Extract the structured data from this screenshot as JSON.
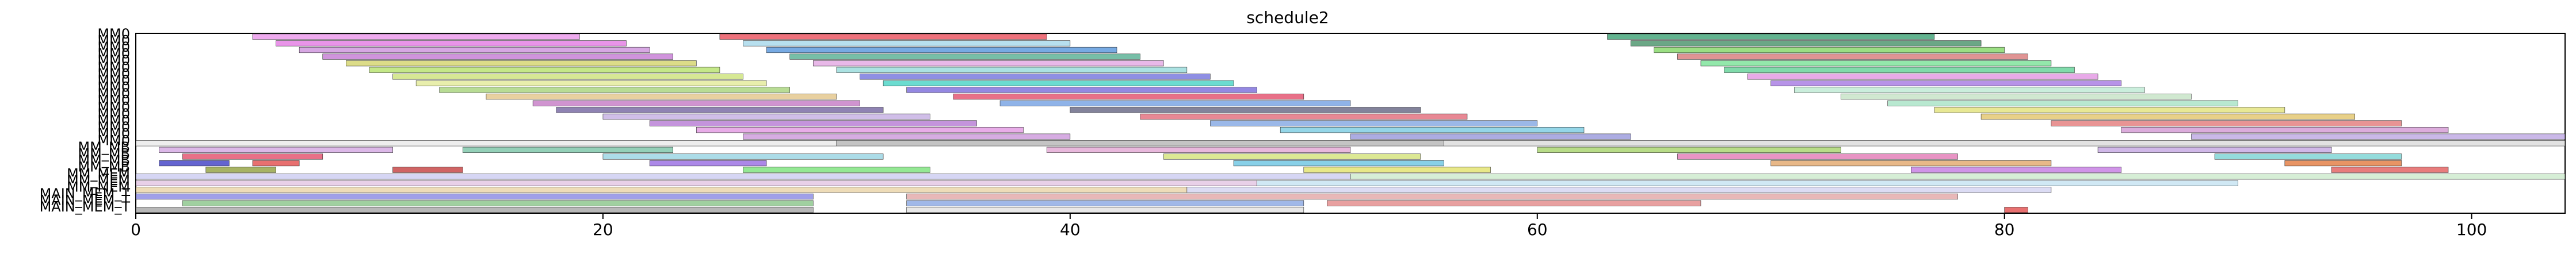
{
  "chart_data": {
    "type": "gantt",
    "title": "schedule2",
    "xlabel": "",
    "ylabel": "",
    "xlim": [
      0,
      104
    ],
    "x_ticks": [
      0,
      20,
      40,
      60,
      80,
      100
    ],
    "x_tick_labels": [
      "0",
      "20",
      "40",
      "60",
      "80",
      "100"
    ],
    "y_labels_visible": [
      "MM0",
      "MM0",
      "MM0",
      "MM0",
      "MM0",
      "MM0",
      "MM0",
      "MM0",
      "MM0",
      "MM0",
      "MM0",
      "MM0",
      "MM0",
      "MM0",
      "MM0",
      "MM0",
      "MM0",
      "MM_MB",
      "MM_MB",
      "MM_MB",
      "MM_MB",
      "MM_MEM",
      "MM_MEM",
      "MM_MEM",
      "MAIN_MEM_T",
      "MAIN_MEM_T",
      "MAIN_MEM_T"
    ],
    "rows": [
      {
        "label": "MM0",
        "bars": [
          [
            5,
            19,
            "#e88ee8"
          ],
          [
            25,
            39,
            "#e8424f"
          ],
          [
            63,
            77,
            "#2d9a6a"
          ]
        ]
      },
      {
        "label": "MM0",
        "bars": [
          [
            6,
            21,
            "#e070e0"
          ],
          [
            26,
            40,
            "#9fd4e8"
          ],
          [
            64,
            79,
            "#3a8a5e"
          ]
        ]
      },
      {
        "label": "MM0",
        "bars": [
          [
            7,
            22,
            "#c98ad9"
          ],
          [
            27,
            42,
            "#4a8ed9"
          ],
          [
            65,
            80,
            "#7ad45a"
          ]
        ]
      },
      {
        "label": "MM0",
        "bars": [
          [
            8,
            23,
            "#c070d0"
          ],
          [
            28,
            43,
            "#4aa88a"
          ],
          [
            66,
            81,
            "#d57070"
          ]
        ]
      },
      {
        "label": "MM0",
        "bars": [
          [
            9,
            24,
            "#d0d060"
          ],
          [
            29,
            44,
            "#e0a0e0"
          ],
          [
            67,
            82,
            "#6fe08f"
          ]
        ]
      },
      {
        "label": "MM0",
        "bars": [
          [
            10,
            25,
            "#b0e060"
          ],
          [
            30,
            45,
            "#8fd8d8"
          ],
          [
            68,
            83,
            "#56cf8f"
          ]
        ]
      },
      {
        "label": "MM0",
        "bars": [
          [
            11,
            26,
            "#c8e070"
          ],
          [
            31,
            46,
            "#6a6ad9"
          ],
          [
            69,
            84,
            "#e08ee0"
          ]
        ]
      },
      {
        "label": "MM0",
        "bars": [
          [
            12,
            27,
            "#e0e890"
          ],
          [
            32,
            47,
            "#3ad0c0"
          ],
          [
            70,
            85,
            "#9f6fe0"
          ]
        ]
      },
      {
        "label": "MM0",
        "bars": [
          [
            13,
            28,
            "#a0d070"
          ],
          [
            33,
            48,
            "#7060d8"
          ],
          [
            71,
            86,
            "#b8e8d0"
          ]
        ]
      },
      {
        "label": "MM0",
        "bars": [
          [
            15,
            30,
            "#e0c080"
          ],
          [
            35,
            50,
            "#e04060"
          ],
          [
            73,
            88,
            "#c0e0c0"
          ]
        ]
      },
      {
        "label": "MM0",
        "bars": [
          [
            17,
            31,
            "#c070c0"
          ],
          [
            37,
            52,
            "#6a9ae0"
          ],
          [
            75,
            90,
            "#a0e0c0"
          ]
        ]
      },
      {
        "label": "MM0",
        "bars": [
          [
            18,
            32,
            "#6a5a9a"
          ],
          [
            40,
            55,
            "#5a5a7a"
          ],
          [
            77,
            92,
            "#e0e070"
          ]
        ]
      },
      {
        "label": "MM0",
        "bars": [
          [
            20,
            34,
            "#c0a8e0"
          ],
          [
            43,
            57,
            "#e06070"
          ],
          [
            79,
            95,
            "#e0c060"
          ]
        ]
      },
      {
        "label": "MM0",
        "bars": [
          [
            22,
            36,
            "#b070d0"
          ],
          [
            46,
            60,
            "#7aa0e0"
          ],
          [
            82,
            97,
            "#e07070"
          ]
        ]
      },
      {
        "label": "MM0",
        "bars": [
          [
            24,
            38,
            "#e090e0"
          ],
          [
            49,
            62,
            "#70c8e0"
          ],
          [
            85,
            99,
            "#d090d0"
          ]
        ]
      },
      {
        "label": "MM0",
        "bars": [
          [
            26,
            40,
            "#c890d8"
          ],
          [
            52,
            64,
            "#9090d8"
          ],
          [
            88,
            104,
            "#b8a0e0"
          ]
        ]
      },
      {
        "label": "MM0",
        "bars": [
          [
            0,
            30,
            "#e8e8e8"
          ],
          [
            30,
            56,
            "#b0b0b0"
          ],
          [
            56,
            104,
            "#d8d8d8"
          ]
        ]
      },
      {
        "label": "MM_MB",
        "bars": [
          [
            1,
            11,
            "#d0a0e0"
          ],
          [
            14,
            23,
            "#70c0a0"
          ],
          [
            39,
            52,
            "#e0a0d0"
          ],
          [
            60,
            73,
            "#a0d060"
          ],
          [
            84,
            94,
            "#c0a0e0"
          ]
        ]
      },
      {
        "label": "MM_MB",
        "bars": [
          [
            2,
            8,
            "#e04060"
          ],
          [
            20,
            32,
            "#90d0e0"
          ],
          [
            44,
            55,
            "#d0e070"
          ],
          [
            66,
            78,
            "#e070b0"
          ],
          [
            89,
            97,
            "#70d0d0"
          ]
        ]
      },
      {
        "label": "MM_MB",
        "bars": [
          [
            1,
            4,
            "#3030c0"
          ],
          [
            5,
            7,
            "#e04040"
          ],
          [
            22,
            27,
            "#9060e0"
          ],
          [
            47,
            56,
            "#60c0e0"
          ],
          [
            70,
            82,
            "#e0a060"
          ],
          [
            92,
            97,
            "#e07030"
          ]
        ]
      },
      {
        "label": "MM_MB",
        "bars": [
          [
            3,
            6,
            "#8a9a30"
          ],
          [
            11,
            14,
            "#c03030"
          ],
          [
            26,
            34,
            "#70e070"
          ],
          [
            50,
            58,
            "#e0e060"
          ],
          [
            76,
            85,
            "#c070e0"
          ],
          [
            94,
            99,
            "#e05050"
          ]
        ]
      },
      {
        "label": "MM_MEM",
        "bars": [
          [
            0,
            52,
            "#c8c8f0"
          ],
          [
            52,
            104,
            "#c8e8c8"
          ]
        ]
      },
      {
        "label": "MM_MEM",
        "bars": [
          [
            0,
            48,
            "#e0c0e0"
          ],
          [
            48,
            90,
            "#c0e0f0"
          ]
        ]
      },
      {
        "label": "MM_MEM",
        "bars": [
          [
            0,
            45,
            "#e8d0a0"
          ],
          [
            45,
            82,
            "#d0d0f0"
          ]
        ]
      },
      {
        "label": "MAIN_MEM_T",
        "bars": [
          [
            0,
            29,
            "#8080e0"
          ],
          [
            33,
            78,
            "#e0a0a0"
          ]
        ]
      },
      {
        "label": "MAIN_MEM_T",
        "bars": [
          [
            2,
            29,
            "#80c080"
          ],
          [
            33,
            50,
            "#80a0e0"
          ],
          [
            51,
            67,
            "#e08080"
          ]
        ]
      },
      {
        "label": "MAIN_MEM_T",
        "bars": [
          [
            0,
            29,
            "#a0a0a0"
          ],
          [
            33,
            50,
            "#e0e0e0"
          ],
          [
            80,
            81,
            "#e04040"
          ]
        ]
      }
    ]
  }
}
